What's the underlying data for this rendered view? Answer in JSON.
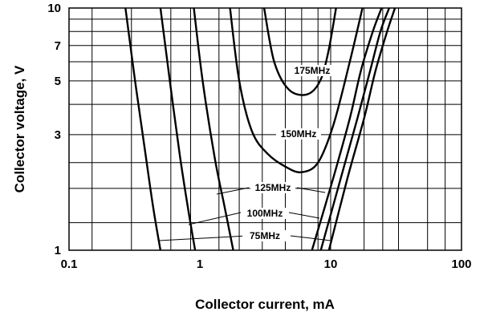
{
  "chart_data": {
    "type": "line",
    "xlabel": "Collector current, mA",
    "ylabel": "Collector voltage, V",
    "xscale": "log",
    "yscale": "log",
    "xlim": [
      0.1,
      100
    ],
    "ylim": [
      1,
      10
    ],
    "x_ticks": [
      {
        "value": 0.1,
        "label": "0.1"
      },
      {
        "value": 1,
        "label": "1"
      },
      {
        "value": 10,
        "label": "10"
      },
      {
        "value": 100,
        "label": "100"
      }
    ],
    "y_ticks": [
      {
        "value": 1,
        "label": "1"
      },
      {
        "value": 3,
        "label": "3"
      },
      {
        "value": 5,
        "label": "5"
      },
      {
        "value": 7,
        "label": "7"
      },
      {
        "value": 10,
        "label": "10"
      }
    ],
    "x_gridlines": [
      0.15,
      0.3,
      0.6,
      0.85,
      1.4,
      2.0,
      3.0,
      4.5,
      6.0,
      8.0,
      10,
      18,
      25,
      33,
      55,
      75
    ],
    "y_gridlines": [
      1.3,
      1.8,
      2.3,
      3,
      4,
      5,
      6,
      7,
      8,
      9
    ],
    "series": [
      {
        "name": "75MHz",
        "left": [
          [
            0.27,
            10
          ],
          [
            0.32,
            5
          ],
          [
            0.38,
            2.6
          ],
          [
            0.44,
            1.5
          ],
          [
            0.5,
            1.0
          ]
        ],
        "right": [
          [
            9.7,
            1.0
          ],
          [
            13.5,
            2.0
          ],
          [
            18,
            3.5
          ],
          [
            22,
            5.5
          ],
          [
            27,
            8
          ],
          [
            31,
            10
          ]
        ]
      },
      {
        "name": "100MHz",
        "left": [
          [
            0.5,
            10
          ],
          [
            0.59,
            5
          ],
          [
            0.7,
            2.5
          ],
          [
            0.81,
            1.5
          ],
          [
            0.92,
            1.0
          ]
        ],
        "right": [
          [
            8.4,
            1.0
          ],
          [
            12,
            2.0
          ],
          [
            16,
            3.5
          ],
          [
            20,
            5.5
          ],
          [
            24,
            8
          ],
          [
            28,
            10
          ]
        ]
      },
      {
        "name": "125MHz",
        "left": [
          [
            0.9,
            10
          ],
          [
            1.05,
            5
          ],
          [
            1.3,
            2.4
          ],
          [
            1.55,
            1.5
          ],
          [
            1.8,
            1.0
          ]
        ],
        "right": [
          [
            7.2,
            1.0
          ],
          [
            10.5,
            2.0
          ],
          [
            14,
            3.5
          ],
          [
            17,
            5.5
          ],
          [
            21,
            8
          ],
          [
            24.5,
            10
          ]
        ]
      },
      {
        "name": "150MHz",
        "points": [
          [
            1.7,
            10
          ],
          [
            2.0,
            5
          ],
          [
            2.5,
            3.1
          ],
          [
            3.3,
            2.5
          ],
          [
            4.6,
            2.2
          ],
          [
            6.0,
            2.1
          ],
          [
            8.0,
            2.3
          ],
          [
            10.5,
            3.3
          ],
          [
            14,
            6.0
          ],
          [
            17.5,
            10
          ]
        ]
      },
      {
        "name": "175MHz",
        "points": [
          [
            3.1,
            10
          ],
          [
            3.7,
            6.0
          ],
          [
            4.8,
            4.6
          ],
          [
            6.6,
            4.4
          ],
          [
            8.3,
            5.0
          ],
          [
            9.6,
            6.6
          ],
          [
            11,
            10
          ]
        ]
      }
    ],
    "annotations": [
      "175MHz",
      "150MHz",
      "125MHz",
      "100MHz",
      "75MHz"
    ]
  }
}
